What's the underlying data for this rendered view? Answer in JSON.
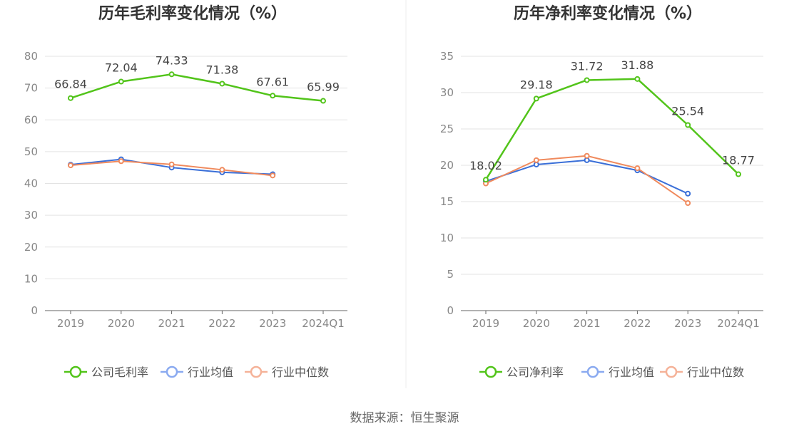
{
  "colors": {
    "company": "#52c41a",
    "industry_avg": "#3a6fd8",
    "industry_median": "#f08a5d",
    "legend_avg": "#8aaaf0",
    "legend_median": "#f5b298",
    "grid": "#e3e3e3",
    "axis": "#666666"
  },
  "chart_data": [
    {
      "type": "line",
      "title": "历年毛利率变化情况（%）",
      "categories": [
        "2019",
        "2020",
        "2021",
        "2022",
        "2023",
        "2024Q1"
      ],
      "ylim": [
        0,
        80
      ],
      "yticks": [
        "0",
        "10",
        "20",
        "30",
        "40",
        "50",
        "60",
        "70",
        "80"
      ],
      "grid": true,
      "legend_position": "bottom",
      "series": [
        {
          "name": "公司毛利率",
          "values": [
            66.84,
            72.04,
            74.33,
            71.38,
            67.61,
            65.99
          ],
          "labels": [
            "66.84",
            "72.04",
            "74.33",
            "71.38",
            "67.61",
            "65.99"
          ]
        },
        {
          "name": "行业均值",
          "values": [
            45.9,
            47.6,
            45.0,
            43.5,
            42.9,
            null
          ]
        },
        {
          "name": "行业中位数",
          "values": [
            45.7,
            47.0,
            46.0,
            44.3,
            42.5,
            null
          ]
        }
      ]
    },
    {
      "type": "line",
      "title": "历年净利率变化情况（%）",
      "categories": [
        "2019",
        "2020",
        "2021",
        "2022",
        "2023",
        "2024Q1"
      ],
      "ylim": [
        0,
        35
      ],
      "yticks": [
        "0",
        "5",
        "10",
        "15",
        "20",
        "25",
        "30",
        "35"
      ],
      "grid": true,
      "legend_position": "bottom",
      "series": [
        {
          "name": "公司净利率",
          "values": [
            18.02,
            29.18,
            31.72,
            31.88,
            25.54,
            18.77
          ],
          "labels": [
            "18.02",
            "29.18",
            "31.72",
            "31.88",
            "25.54",
            "18.77"
          ]
        },
        {
          "name": "行业均值",
          "values": [
            17.8,
            20.1,
            20.7,
            19.3,
            16.1,
            null
          ]
        },
        {
          "name": "行业中位数",
          "values": [
            17.5,
            20.7,
            21.3,
            19.6,
            14.8,
            null
          ]
        }
      ]
    }
  ],
  "footer": {
    "source": "数据来源：恒生聚源"
  }
}
